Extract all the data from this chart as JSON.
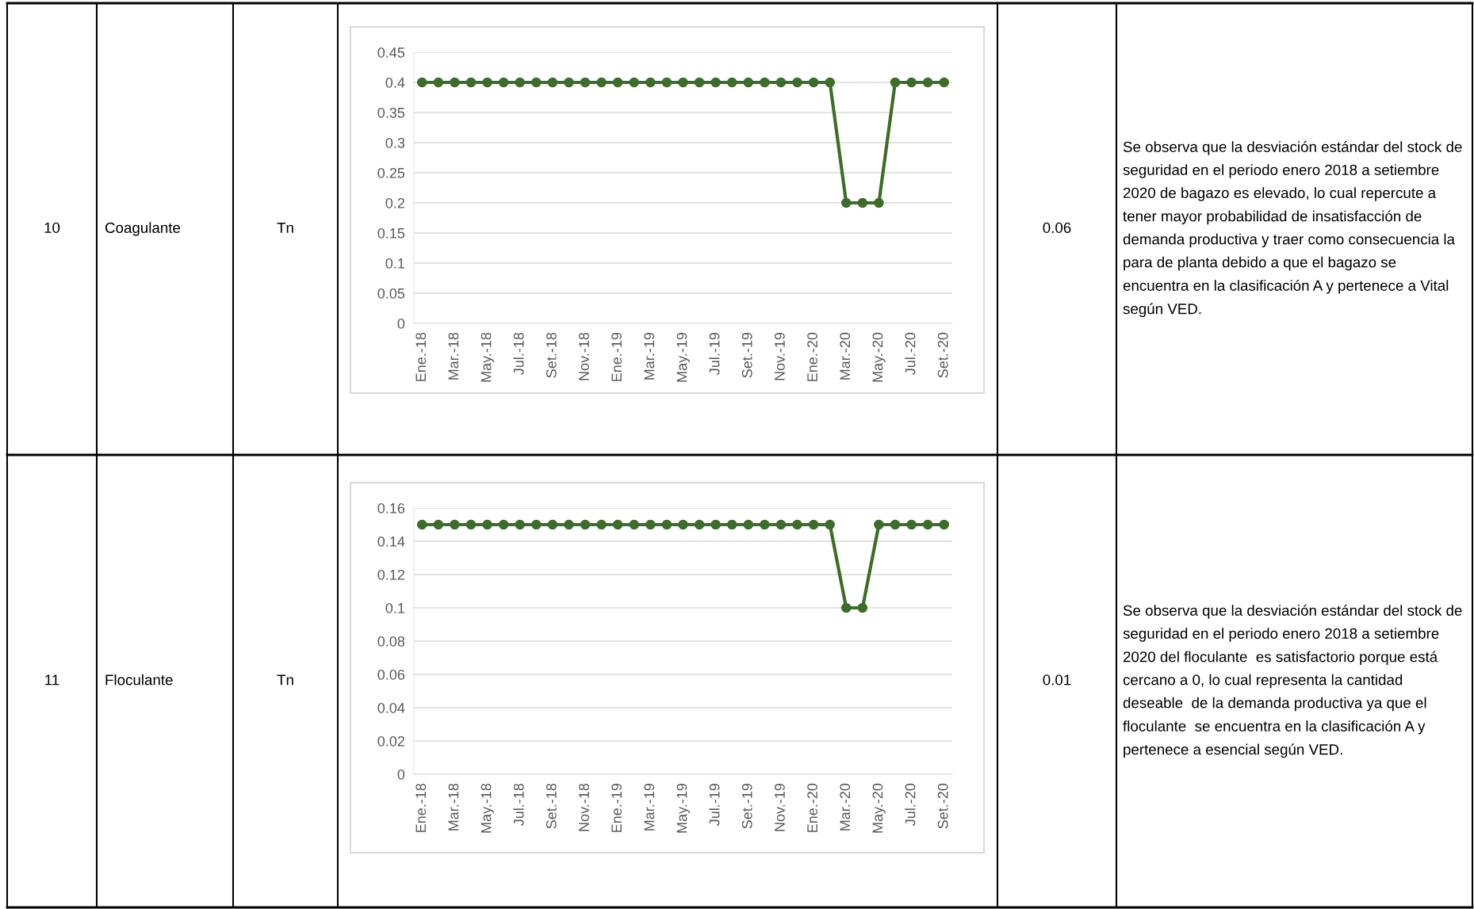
{
  "chart_data": [
    {
      "type": "other",
      "annotations": [
        "10",
        "Coagulante",
        "Tn"
      ]
    },
    {
      "type": "line",
      "categories": [
        "Ene.-18",
        null,
        "Mar.-18",
        null,
        "May.-18",
        null,
        "Jul.-18",
        null,
        "Set.-18",
        null,
        "Nov.-18",
        null,
        "Ene.-19",
        null,
        "Mar.-19",
        null,
        "May.-19",
        null,
        "Jul.-19",
        null,
        "Set.-19",
        null,
        "Nov.-19",
        null,
        "Ene.-20",
        null,
        "Mar.-20",
        null,
        "May.-20",
        null,
        "Jul.-20",
        null,
        "Set.-20"
      ],
      "series": [
        {
          "color": "#3f6b2b",
          "values": [
            0.4,
            0.4,
            0.4,
            0.4,
            0.4,
            0.4,
            0.4,
            0.4,
            0.4,
            0.4,
            0.4,
            0.4,
            0.4,
            0.4,
            0.4,
            0.4,
            0.4,
            0.4,
            0.4,
            0.4,
            0.4,
            0.4,
            0.4,
            0.4,
            0.4,
            0.4,
            0.2,
            0.2,
            0.2,
            0.4,
            0.4,
            0.4,
            0.4
          ]
        }
      ],
      "ylim": [
        0,
        0.45
      ],
      "yticks": [
        0,
        0.05,
        0.1,
        0.15,
        0.2,
        0.25,
        0.3,
        0.35,
        0.4,
        0.45
      ],
      "grid": "y",
      "marker": "circle",
      "line_style": "solid"
    },
    {
      "type": "other",
      "annotations": [
        "0.06",
        "Se observa que la desviación estándar del stock de seguridad en el periodo enero 2018 a setiembre 2020 de bagazo es elevado, lo cual repercute a tener mayor probabilidad de insatisfacción de demanda productiva y traer como consecuencia la para de planta debido a que el bagazo se encuentra en la clasificación A y pertenece a Vital según VED."
      ]
    },
    {
      "type": "other",
      "annotations": [
        "11",
        "Floculante",
        "Tn"
      ]
    },
    {
      "type": "line",
      "categories": [
        "Ene.-18",
        null,
        "Mar.-18",
        null,
        "May.-18",
        null,
        "Jul.-18",
        null,
        "Set.-18",
        null,
        "Nov.-18",
        null,
        "Ene.-19",
        null,
        "Mar.-19",
        null,
        "May.-19",
        null,
        "Jul.-19",
        null,
        "Set.-19",
        null,
        "Nov.-19",
        null,
        "Ene.-20",
        null,
        "Mar.-20",
        null,
        "May.-20",
        null,
        "Jul.-20",
        null,
        "Set.-20"
      ],
      "series": [
        {
          "color": "#3f6b2b",
          "values": [
            0.15,
            0.15,
            0.15,
            0.15,
            0.15,
            0.15,
            0.15,
            0.15,
            0.15,
            0.15,
            0.15,
            0.15,
            0.15,
            0.15,
            0.15,
            0.15,
            0.15,
            0.15,
            0.15,
            0.15,
            0.15,
            0.15,
            0.15,
            0.15,
            0.15,
            0.15,
            0.1,
            0.1,
            0.15,
            0.15,
            0.15,
            0.15,
            0.15
          ]
        }
      ],
      "ylim": [
        0,
        0.16
      ],
      "yticks": [
        0,
        0.02,
        0.04,
        0.06,
        0.08,
        0.1,
        0.12,
        0.14,
        0.16
      ],
      "grid": "y",
      "marker": "circle",
      "line_style": "solid"
    },
    {
      "type": "other",
      "annotations": [
        "0.01",
        "Se observa que la desviación estándar del stock de seguridad en el periodo enero 2018 a setiembre 2020 del floculante  es satisfactorio porque está cercano a 0, lo cual representa la cantidad deseable  de la demanda productiva ya que el floculante  se encuentra en la clasificación A y pertenece a esencial según VED."
      ]
    }
  ]
}
